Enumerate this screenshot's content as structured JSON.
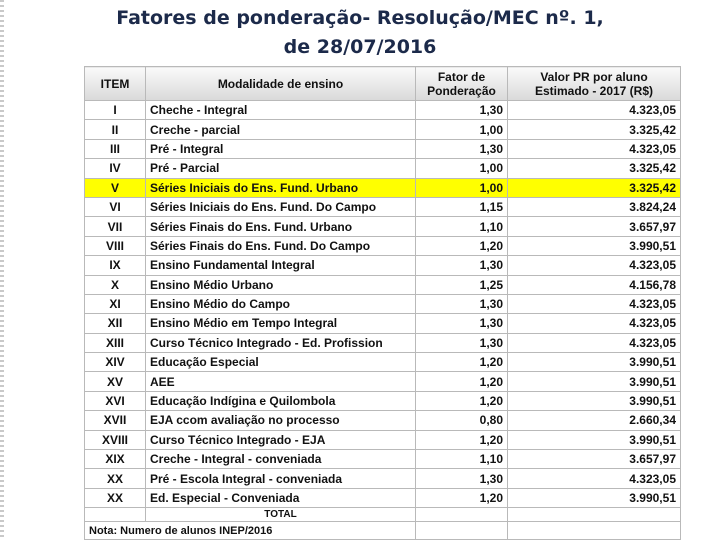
{
  "header": {
    "title_line1": "Fatores de ponderação- Resolução/MEC nº. 1,",
    "title_line2": "de 28/07/2016"
  },
  "table": {
    "columns": [
      "ITEM",
      "Modalidade de ensino",
      "Fator de Ponderação",
      "Valor PR por aluno Estimado - 2017 (R$)"
    ],
    "rows": [
      [
        "I",
        "Cheche - Integral",
        "1,30",
        "4.323,05"
      ],
      [
        "II",
        "Creche - parcial",
        "1,00",
        "3.325,42"
      ],
      [
        "III",
        "Pré - Integral",
        "1,30",
        "4.323,05"
      ],
      [
        "IV",
        "Pré - Parcial",
        "1,00",
        "3.325,42"
      ],
      [
        "V",
        "Séries Iniciais do Ens. Fund. Urbano",
        "1,00",
        "3.325,42"
      ],
      [
        "VI",
        "Séries Iniciais do Ens. Fund. Do Campo",
        "1,15",
        "3.824,24"
      ],
      [
        "VII",
        "Séries Finais do Ens. Fund. Urbano",
        "1,10",
        "3.657,97"
      ],
      [
        "VIII",
        "Séries Finais do Ens. Fund. Do Campo",
        "1,20",
        "3.990,51"
      ],
      [
        "IX",
        "Ensino Fundamental Integral",
        "1,30",
        "4.323,05"
      ],
      [
        "X",
        "Ensino Médio Urbano",
        "1,25",
        "4.156,78"
      ],
      [
        "XI",
        "Ensino Médio do Campo",
        "1,30",
        "4.323,05"
      ],
      [
        "XII",
        "Ensino Médio em Tempo Integral",
        "1,30",
        "4.323,05"
      ],
      [
        "XIII",
        "Curso Técnico Integrado - Ed. Profission",
        "1,30",
        "4.323,05"
      ],
      [
        "XIV",
        "Educação Especial",
        "1,20",
        "3.990,51"
      ],
      [
        "XV",
        "AEE",
        "1,20",
        "3.990,51"
      ],
      [
        "XVI",
        "Educação Indígina e Quilombola",
        "1,20",
        "3.990,51"
      ],
      [
        "XVII",
        "EJA ccom avaliação no processo",
        "0,80",
        "2.660,34"
      ],
      [
        "XVIII",
        "Curso Técnico Integrado - EJA",
        "1,20",
        "3.990,51"
      ],
      [
        "XIX",
        "Creche - Integral - conveniada",
        "1,10",
        "3.657,97"
      ],
      [
        "XX",
        "Pré - Escola Integral - conveniada",
        "1,30",
        "4.323,05"
      ],
      [
        "XX",
        "Ed. Especial - Conveniada",
        "1,20",
        "3.990,51"
      ]
    ],
    "total": "TOTAL",
    "note": "Nota: Numero de alunos INEP/2016"
  }
}
